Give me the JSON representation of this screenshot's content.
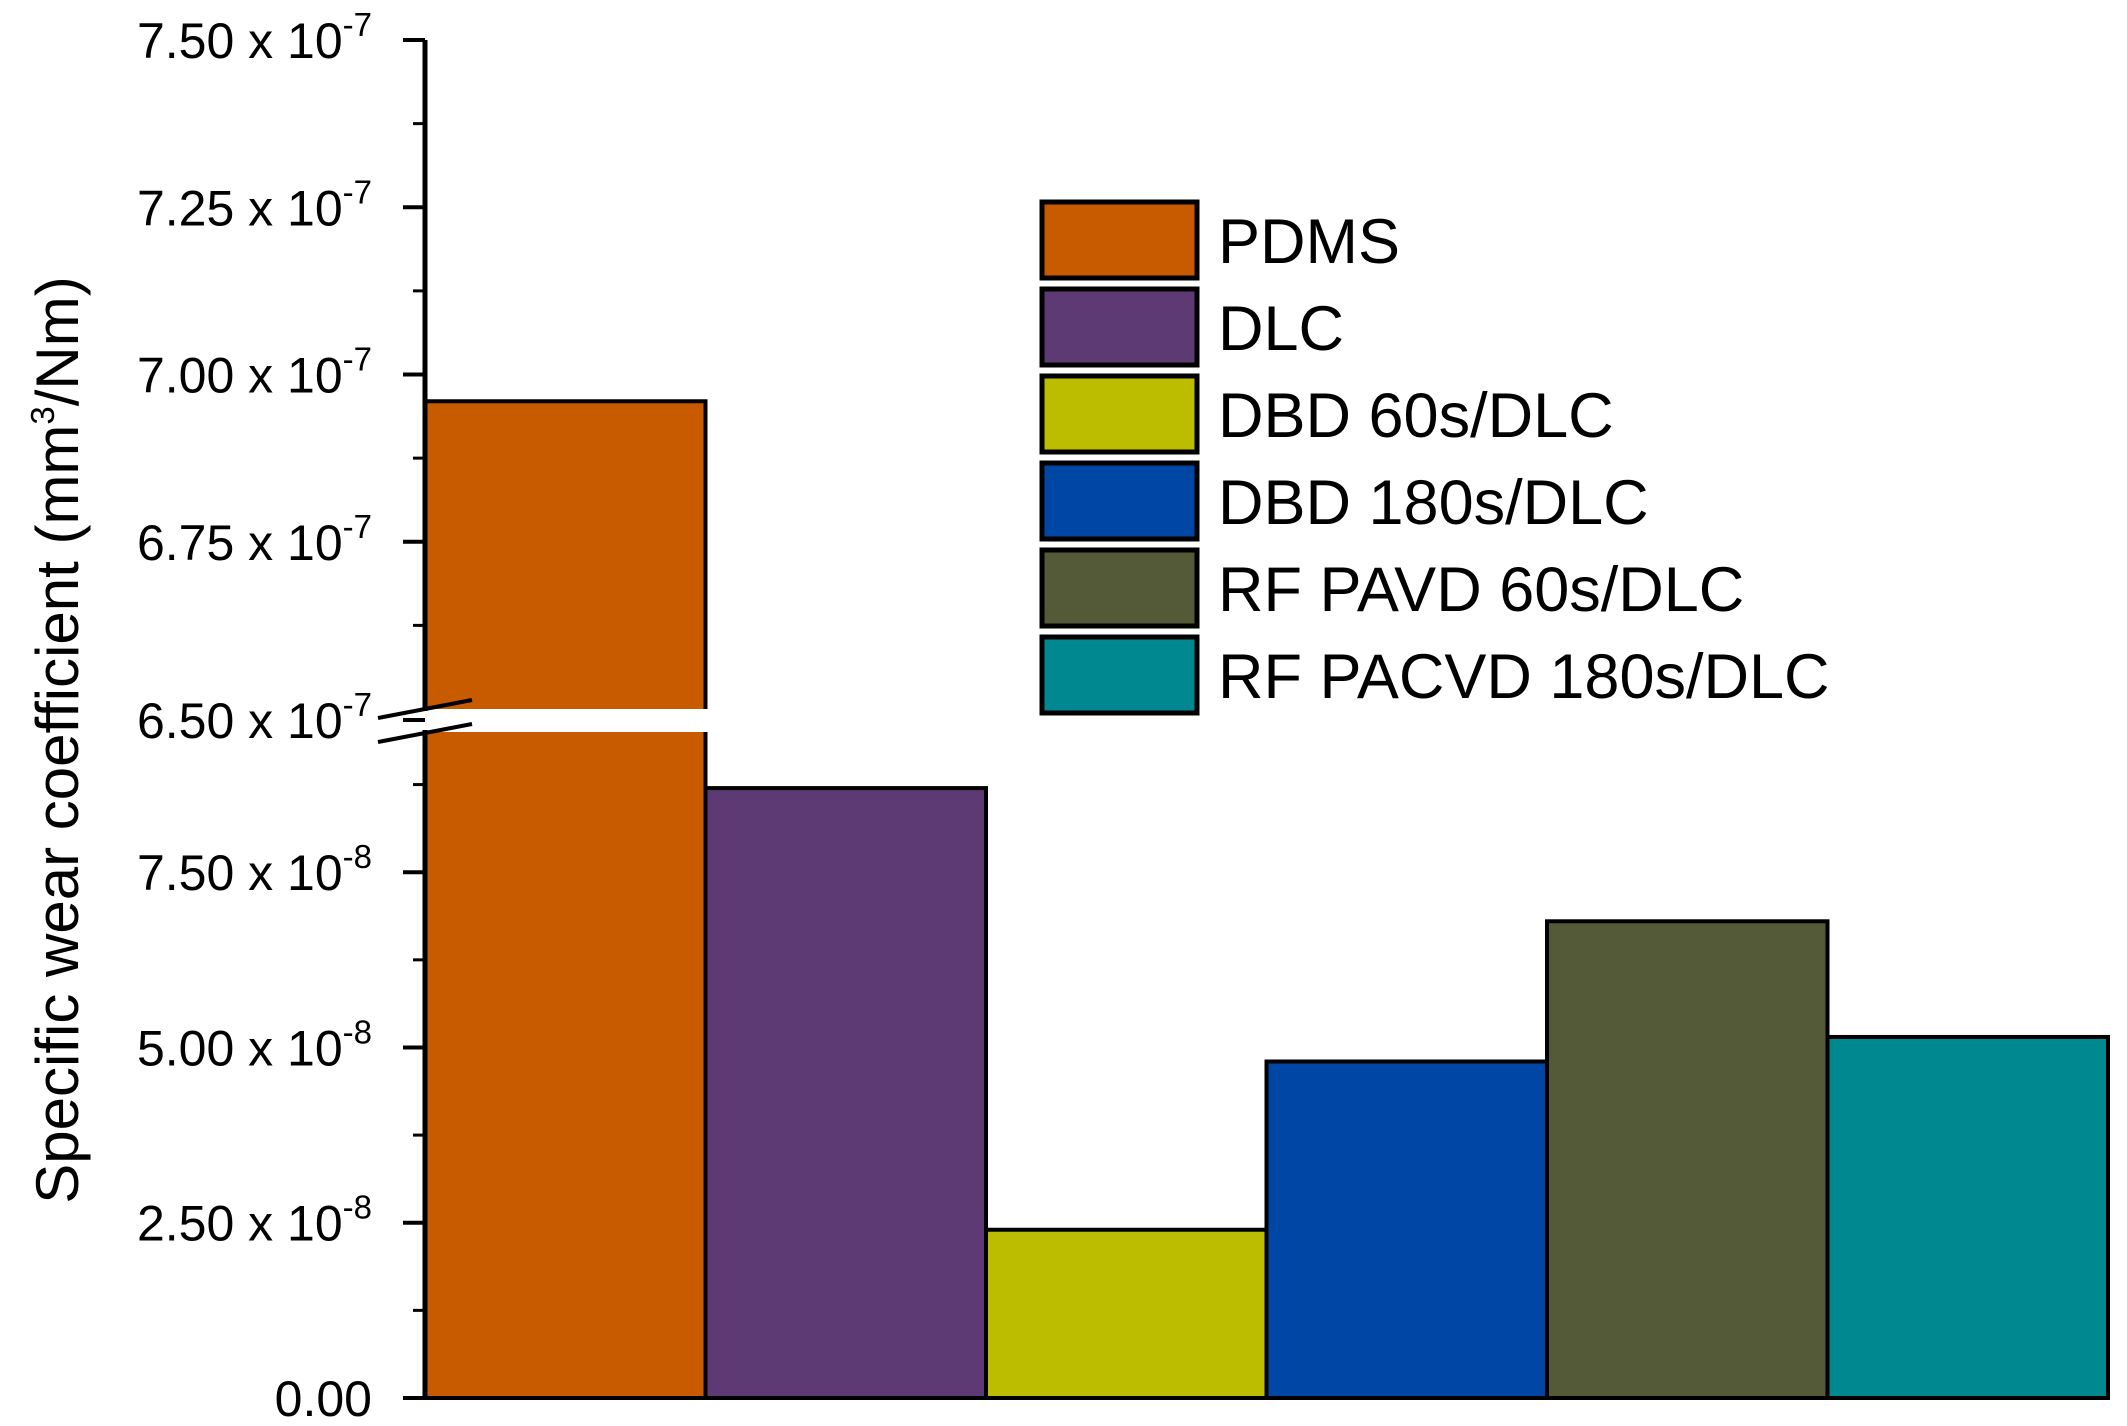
{
  "chart_data": {
    "type": "bar",
    "title": "",
    "xlabel": "",
    "ylabel": "Specific wear coefficient (mm3/Nm)",
    "ylabel_parts": {
      "before": "Specific wear coefficient (mm",
      "sup": "3",
      "after": "/Nm)"
    },
    "axis_break": {
      "lower_range": [
        0,
        9.5e-08
      ],
      "upper_range": [
        6.5e-07,
        7.5e-07
      ]
    },
    "yticks": [
      {
        "value": 0,
        "mantissa": "0.00",
        "times": "",
        "base": "",
        "exp": ""
      },
      {
        "value": 2.5e-08,
        "mantissa": "2.50",
        "times": " x ",
        "base": "10",
        "exp": "-8"
      },
      {
        "value": 5e-08,
        "mantissa": "5.00",
        "times": " x ",
        "base": "10",
        "exp": "-8"
      },
      {
        "value": 7.5e-08,
        "mantissa": "7.50",
        "times": " x ",
        "base": "10",
        "exp": "-8"
      },
      {
        "value": 6.5e-07,
        "mantissa": "6.50",
        "times": " x ",
        "base": "10",
        "exp": "-7"
      },
      {
        "value": 6.75e-07,
        "mantissa": "6.75",
        "times": " x ",
        "base": "10",
        "exp": "-7"
      },
      {
        "value": 7e-07,
        "mantissa": "7.00",
        "times": " x ",
        "base": "10",
        "exp": "-7"
      },
      {
        "value": 7.25e-07,
        "mantissa": "7.25",
        "times": " x ",
        "base": "10",
        "exp": "-7"
      },
      {
        "value": 7.5e-07,
        "mantissa": "7.50",
        "times": " x ",
        "base": "10",
        "exp": "-7"
      }
    ],
    "legend_position": "top-right",
    "series": [
      {
        "name": "PDMS",
        "value": 6.96e-07,
        "color": "#C85A00"
      },
      {
        "name": "DLC",
        "value": 8.7e-08,
        "color": "#5E3A74"
      },
      {
        "name": "DBD 60s/DLC",
        "value": 2.4e-08,
        "color": "#BDBD00"
      },
      {
        "name": "DBD 180s/DLC",
        "value": 4.8e-08,
        "color": "#0046A5"
      },
      {
        "name": "RF PAVD 60s/DLC",
        "value": 6.8e-08,
        "color": "#545938"
      },
      {
        "name": "RF PACVD 180s/DLC",
        "value": 5.15e-08,
        "color": "#008891"
      }
    ]
  }
}
